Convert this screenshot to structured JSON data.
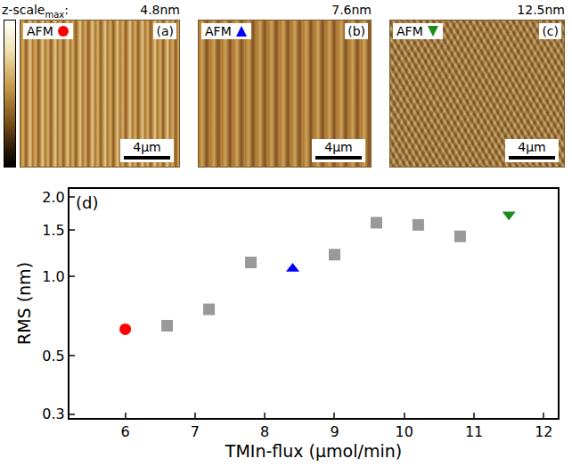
{
  "figure": {
    "zscale": {
      "text": "z-scale",
      "sub": "max",
      "suffix": ":"
    },
    "panels": [
      {
        "label": "(a)",
        "tag": "AFM",
        "marker": "circle",
        "color": "#ff0000",
        "zscale_max": "4.8nm",
        "scalebar": "4µm"
      },
      {
        "label": "(b)",
        "tag": "AFM",
        "marker": "triangle-up",
        "color": "#0000ff",
        "zscale_max": "7.6nm",
        "scalebar": "4µm"
      },
      {
        "label": "(c)",
        "tag": "AFM",
        "marker": "triangle-down",
        "color": "#1a8c1a",
        "zscale_max": "12.5nm",
        "scalebar": "4µm"
      }
    ]
  },
  "chart_data": {
    "type": "scatter",
    "panel": "(d)",
    "xlabel": "TMIn-flux (µmol/min)",
    "ylabel": "RMS (nm)",
    "xlim": [
      5.2,
      12.2
    ],
    "xticks": [
      6,
      7,
      8,
      9,
      10,
      11,
      12
    ],
    "ylim": [
      0.29,
      2.15
    ],
    "yticks": [
      0.3,
      0.5,
      {
        "value": 1,
        "label": "1.0"
      },
      1.5,
      {
        "value": 2,
        "label": "2.0"
      }
    ],
    "log": "y",
    "grid": false,
    "series": [
      {
        "color": "#999999",
        "marker": "square",
        "x": [
          6.6,
          7.2,
          7.8,
          9.0,
          9.6,
          10.2,
          10.8
        ],
        "values": [
          0.65,
          0.75,
          1.13,
          1.21,
          1.6,
          1.57,
          1.42
        ]
      },
      {
        "color": "#ff0000",
        "marker": "circle",
        "x": [
          6.0
        ],
        "values": [
          0.63
        ]
      },
      {
        "color": "#0000ff",
        "marker": "triangle-up",
        "x": [
          8.4
        ],
        "values": [
          1.07
        ]
      },
      {
        "color": "#1a8c1a",
        "marker": "triangle-down",
        "x": [
          11.5
        ],
        "values": [
          1.72
        ]
      }
    ]
  }
}
